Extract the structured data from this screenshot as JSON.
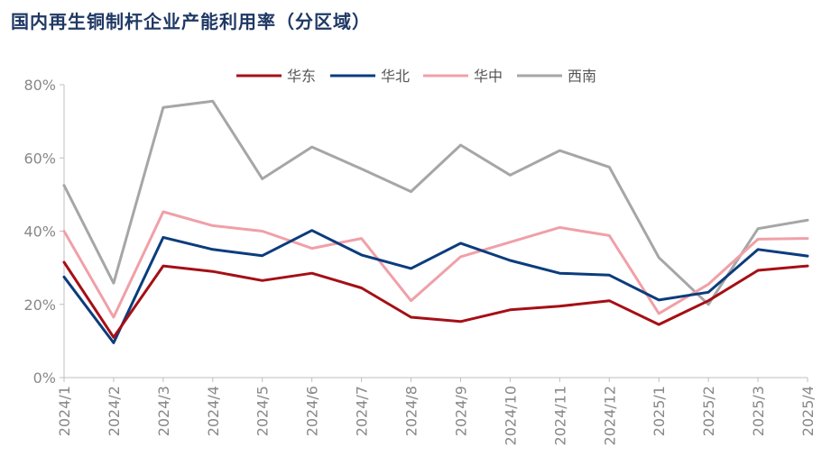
{
  "chart_data": {
    "type": "line",
    "title": "国内再生铜制杆企业产能利用率（分区域）",
    "xlabel": "",
    "ylabel": "",
    "ylim": [
      0,
      80
    ],
    "yticks": [
      "0%",
      "20%",
      "40%",
      "60%",
      "80%"
    ],
    "categories": [
      "2024/1",
      "2024/2",
      "2024/3",
      "2024/4",
      "2024/5",
      "2024/6",
      "2024/7",
      "2024/8",
      "2024/9",
      "2024/10",
      "2024/11",
      "2024/12",
      "2025/1",
      "2025/2",
      "2025/3",
      "2025/4"
    ],
    "legend_position": "top-center",
    "grid": false,
    "series": [
      {
        "name": "华东",
        "color": "#A50F15",
        "values": [
          31.5,
          11.0,
          30.5,
          29.0,
          26.5,
          28.5,
          24.5,
          16.5,
          15.3,
          18.5,
          19.5,
          21.0,
          14.5,
          21.0,
          29.3,
          30.5
        ]
      },
      {
        "name": "华北",
        "color": "#0B3C7D",
        "values": [
          27.5,
          9.5,
          38.3,
          35.0,
          33.3,
          40.2,
          33.5,
          29.8,
          36.7,
          32.0,
          28.5,
          28.0,
          21.2,
          23.3,
          35.0,
          33.2
        ]
      },
      {
        "name": "华中",
        "color": "#F0A0A8",
        "values": [
          40.0,
          16.5,
          45.3,
          41.5,
          40.0,
          35.3,
          38.0,
          21.0,
          33.0,
          37.0,
          41.0,
          38.8,
          17.5,
          25.5,
          37.8,
          38.0
        ]
      },
      {
        "name": "西南",
        "color": "#A6A6A6",
        "values": [
          52.5,
          25.8,
          73.8,
          75.5,
          54.3,
          63.0,
          57.0,
          50.8,
          63.5,
          55.3,
          62.0,
          57.5,
          32.8,
          20.0,
          40.7,
          43.0
        ]
      }
    ]
  }
}
